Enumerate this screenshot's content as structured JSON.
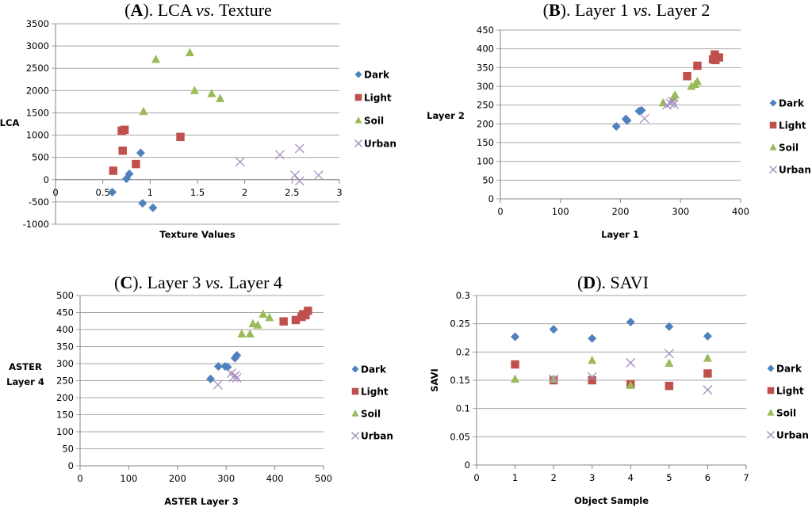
{
  "series_styles": {
    "Dark": {
      "marker": "diamond",
      "color": "#4F81BD"
    },
    "Light": {
      "marker": "square",
      "color": "#C0504D"
    },
    "Soil": {
      "marker": "triangle",
      "color": "#9BBB59"
    },
    "Urban": {
      "marker": "x",
      "color": "#A48CC0"
    }
  },
  "chart_data": [
    {
      "id": "A",
      "type": "scatter",
      "title_prefix": "(",
      "title_letter": "A",
      "title_mid": "). LCA ",
      "title_vs": "vs.",
      "title_rest": " Texture",
      "xlabel": "Texture Values",
      "ylabel": "LCA",
      "xlim": [
        0,
        3
      ],
      "ylim": [
        -1000,
        3500
      ],
      "xticks": [
        0,
        0.5,
        1,
        1.5,
        2,
        2.5,
        3
      ],
      "xtick_labels": [
        "0",
        "0.5",
        "1",
        "1.5",
        "2",
        "2.5",
        "3"
      ],
      "yticks": [
        -1000,
        -500,
        0,
        500,
        1000,
        1500,
        2000,
        2500,
        3000,
        3500
      ],
      "ytick_labels": [
        "-1000",
        "-500",
        "0",
        "500",
        "1000",
        "1500",
        "2000",
        "2500",
        "3000",
        "3500"
      ],
      "x_ticks_at_zero": true,
      "grid": true,
      "legend": "right",
      "series": [
        {
          "name": "Dark",
          "points": [
            [
              0.6,
              -280
            ],
            [
              0.75,
              20
            ],
            [
              0.78,
              130
            ],
            [
              0.9,
              600
            ],
            [
              0.92,
              -530
            ],
            [
              1.03,
              -630
            ]
          ]
        },
        {
          "name": "Light",
          "points": [
            [
              0.61,
              200
            ],
            [
              0.7,
              1100
            ],
            [
              0.73,
              1120
            ],
            [
              0.71,
              650
            ],
            [
              0.85,
              350
            ],
            [
              1.32,
              960
            ]
          ]
        },
        {
          "name": "Soil",
          "points": [
            [
              0.93,
              1530
            ],
            [
              1.06,
              2700
            ],
            [
              1.42,
              2850
            ],
            [
              1.47,
              2000
            ],
            [
              1.65,
              1930
            ],
            [
              1.74,
              1820
            ]
          ]
        },
        {
          "name": "Urban",
          "points": [
            [
              1.95,
              400
            ],
            [
              2.37,
              560
            ],
            [
              2.58,
              700
            ],
            [
              2.53,
              100
            ],
            [
              2.58,
              -30
            ],
            [
              2.78,
              100
            ]
          ]
        }
      ]
    },
    {
      "id": "B",
      "type": "scatter",
      "title_prefix": "(",
      "title_letter": "B",
      "title_mid": "). Layer 1 ",
      "title_vs": "vs.",
      "title_rest": " Layer 2",
      "xlabel": "Layer 1",
      "ylabel": "Layer 2",
      "xlim": [
        0,
        400
      ],
      "ylim": [
        0,
        450
      ],
      "xticks": [
        0,
        100,
        200,
        300,
        400
      ],
      "xtick_labels": [
        "0",
        "100",
        "200",
        "300",
        "400"
      ],
      "yticks": [
        0,
        50,
        100,
        150,
        200,
        250,
        300,
        350,
        400,
        450
      ],
      "ytick_labels": [
        "0",
        "50",
        "100",
        "150",
        "200",
        "250",
        "300",
        "350",
        "400",
        "450"
      ],
      "grid": true,
      "legend": "right",
      "series": [
        {
          "name": "Dark",
          "points": [
            [
              193,
              193
            ],
            [
              209,
              213
            ],
            [
              211,
              209
            ],
            [
              231,
              234
            ],
            [
              235,
              236
            ]
          ]
        },
        {
          "name": "Light",
          "points": [
            [
              311,
              327
            ],
            [
              328,
              355
            ],
            [
              354,
              372
            ],
            [
              357,
              385
            ],
            [
              358,
              370
            ],
            [
              364,
              377
            ]
          ]
        },
        {
          "name": "Soil",
          "points": [
            [
              271,
              256
            ],
            [
              288,
              270
            ],
            [
              291,
              277
            ],
            [
              318,
              300
            ],
            [
              324,
              305
            ],
            [
              328,
              313
            ]
          ]
        },
        {
          "name": "Urban",
          "points": [
            [
              240,
              214
            ],
            [
              277,
              250
            ],
            [
              283,
              255
            ],
            [
              287,
              260
            ],
            [
              289,
              252
            ]
          ]
        }
      ]
    },
    {
      "id": "C",
      "type": "scatter",
      "title_prefix": "(",
      "title_letter": "C",
      "title_mid": "). Layer 3 ",
      "title_vs": "vs.",
      "title_rest": " Layer 4",
      "xlabel": "ASTER Layer 3",
      "ylabel": "ASTER Layer 4",
      "ylabel_lines": [
        "ASTER",
        "Layer 4"
      ],
      "xlim": [
        0,
        500
      ],
      "ylim": [
        0,
        500
      ],
      "xticks": [
        0,
        100,
        200,
        300,
        400,
        500
      ],
      "xtick_labels": [
        "0",
        "100",
        "200",
        "300",
        "400",
        "500"
      ],
      "yticks": [
        0,
        50,
        100,
        150,
        200,
        250,
        300,
        350,
        400,
        450,
        500
      ],
      "ytick_labels": [
        "0",
        "50",
        "100",
        "150",
        "200",
        "250",
        "300",
        "350",
        "400",
        "450",
        "500"
      ],
      "grid": true,
      "legend": "right",
      "series": [
        {
          "name": "Dark",
          "points": [
            [
              268,
              255
            ],
            [
              284,
              292
            ],
            [
              298,
              292
            ],
            [
              303,
              290
            ],
            [
              318,
              316
            ],
            [
              322,
              324
            ]
          ]
        },
        {
          "name": "Light",
          "points": [
            [
              418,
              424
            ],
            [
              443,
              428
            ],
            [
              455,
              437
            ],
            [
              458,
              445
            ],
            [
              463,
              442
            ],
            [
              468,
              455
            ]
          ]
        },
        {
          "name": "Soil",
          "points": [
            [
              332,
              387
            ],
            [
              349,
              387
            ],
            [
              355,
              417
            ],
            [
              365,
              413
            ],
            [
              376,
              445
            ],
            [
              389,
              435
            ]
          ]
        },
        {
          "name": "Urban",
          "points": [
            [
              283,
              238
            ],
            [
              311,
              272
            ],
            [
              315,
              260
            ],
            [
              319,
              265
            ],
            [
              322,
              258
            ]
          ]
        }
      ]
    },
    {
      "id": "D",
      "type": "scatter",
      "title_prefix": "(",
      "title_letter": "D",
      "title_mid": "). SAVI",
      "title_vs": "",
      "title_rest": "",
      "xlabel": "Object Sample",
      "ylabel": "SAVI",
      "ylabel_rotated": true,
      "xlim": [
        0,
        7
      ],
      "ylim": [
        0,
        0.3
      ],
      "xticks": [
        0,
        1,
        2,
        3,
        4,
        5,
        6,
        7
      ],
      "xtick_labels": [
        "0",
        "1",
        "2",
        "3",
        "4",
        "5",
        "6",
        "7"
      ],
      "yticks": [
        0,
        0.05,
        0.1,
        0.15,
        0.2,
        0.25,
        0.3
      ],
      "ytick_labels": [
        "0",
        "0.05",
        "0.1",
        "0.15",
        "0.2",
        "0.25",
        "0.3"
      ],
      "grid": true,
      "legend": "right",
      "series": [
        {
          "name": "Dark",
          "points": [
            [
              1,
              0.227
            ],
            [
              2,
              0.24
            ],
            [
              3,
              0.224
            ],
            [
              4,
              0.253
            ],
            [
              5,
              0.245
            ],
            [
              6,
              0.228
            ]
          ]
        },
        {
          "name": "Light",
          "points": [
            [
              1,
              0.178
            ],
            [
              2,
              0.15
            ],
            [
              3,
              0.15
            ],
            [
              4,
              0.143
            ],
            [
              5,
              0.14
            ],
            [
              6,
              0.162
            ]
          ]
        },
        {
          "name": "Soil",
          "points": [
            [
              1,
              0.152
            ],
            [
              2,
              0.152
            ],
            [
              3,
              0.185
            ],
            [
              4,
              0.141
            ],
            [
              5,
              0.18
            ],
            [
              6,
              0.189
            ]
          ]
        },
        {
          "name": "Urban",
          "points": [
            [
              2,
              0.152
            ],
            [
              3,
              0.156
            ],
            [
              4,
              0.181
            ],
            [
              5,
              0.197
            ],
            [
              6,
              0.133
            ]
          ]
        }
      ]
    }
  ]
}
